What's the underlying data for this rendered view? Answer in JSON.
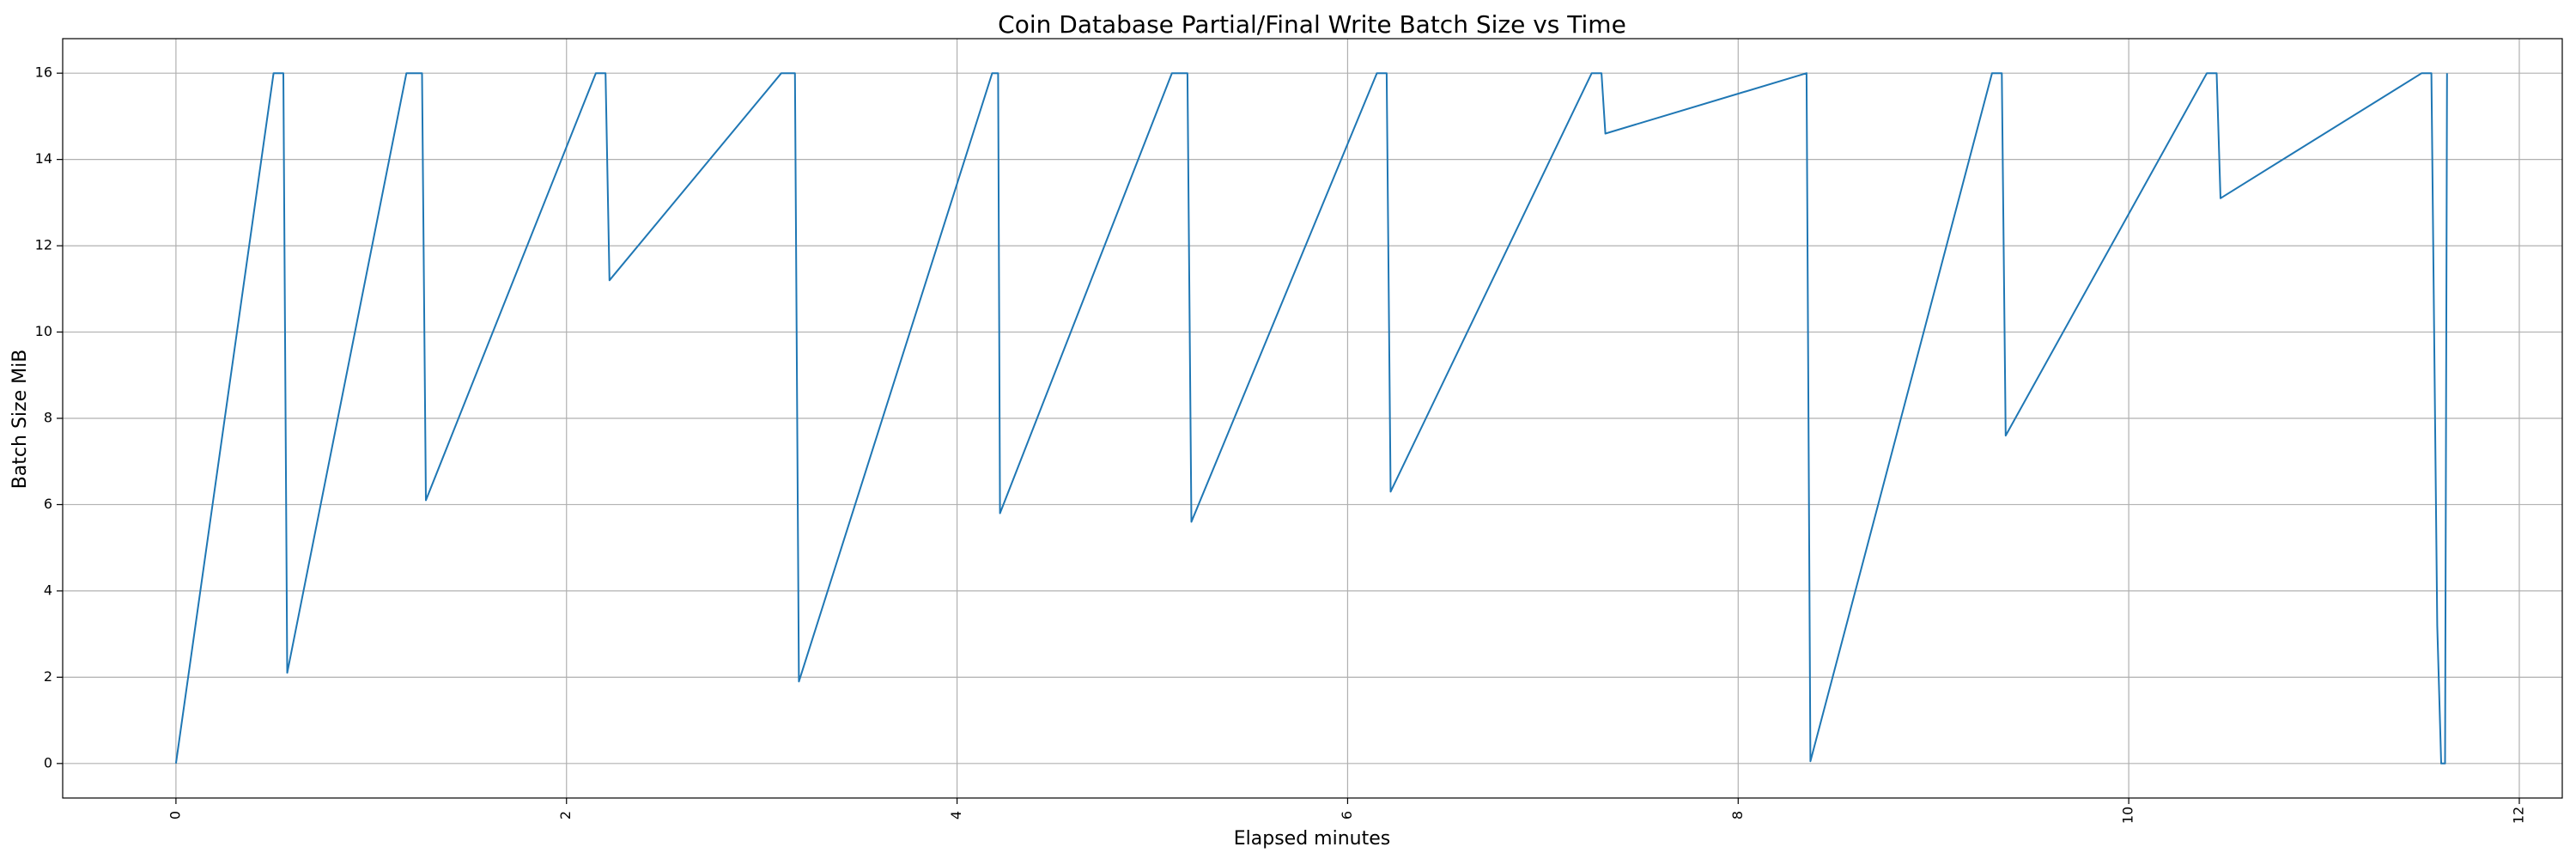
{
  "chart_data": {
    "type": "line",
    "title": "Coin Database Partial/Final Write Batch Size vs Time",
    "xlabel": "Elapsed minutes",
    "ylabel": "Batch Size MiB",
    "xlim": [
      -0.58,
      12.22
    ],
    "ylim": [
      -0.8,
      16.8
    ],
    "xticks": [
      0,
      2,
      4,
      6,
      8,
      10,
      12
    ],
    "yticks": [
      0,
      2,
      4,
      6,
      8,
      10,
      12,
      14,
      16
    ],
    "xtick_rotation": -90,
    "grid": true,
    "colors": {
      "line": "#1f77b4",
      "grid": "#b0b0b0",
      "axes": "#000000"
    },
    "series": [
      {
        "x": [
          0.0,
          0.5,
          0.55,
          0.57,
          1.18,
          1.26,
          1.28,
          2.15,
          2.2,
          2.22,
          3.1,
          3.17,
          3.19,
          4.18,
          4.21,
          4.22,
          5.1,
          5.18,
          5.2,
          6.15,
          6.2,
          6.22,
          7.25,
          7.3,
          7.32,
          8.35,
          8.37,
          9.3,
          9.35,
          9.37,
          10.4,
          10.45,
          10.47,
          11.5,
          11.55,
          11.58,
          11.6,
          11.62,
          11.63
        ],
        "y": [
          0.0,
          16.0,
          16.0,
          2.1,
          16.0,
          16.0,
          6.1,
          16.0,
          16.0,
          11.2,
          16.0,
          16.0,
          1.9,
          16.0,
          16.0,
          5.8,
          16.0,
          16.0,
          5.6,
          16.0,
          16.0,
          6.3,
          16.0,
          16.0,
          14.6,
          16.0,
          0.05,
          16.0,
          16.0,
          7.6,
          16.0,
          16.0,
          13.1,
          16.0,
          16.0,
          3.2,
          0.0,
          0.0,
          16.0
        ]
      }
    ]
  }
}
